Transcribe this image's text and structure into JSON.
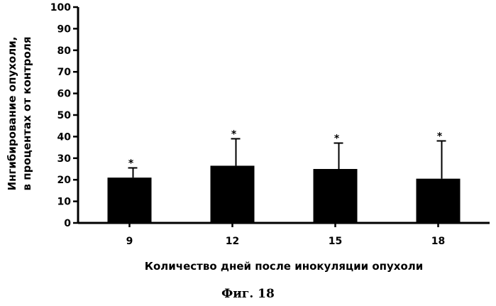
{
  "chart_data": {
    "type": "bar",
    "categories": [
      "9",
      "12",
      "15",
      "18"
    ],
    "values": [
      21,
      26.5,
      25,
      20.5
    ],
    "error_upper": [
      25.5,
      39,
      37,
      38
    ],
    "significance_markers": [
      "*",
      "*",
      "*",
      "*"
    ],
    "ylabel_line1": "Ингибирование опухоли,",
    "ylabel_line2": "в процентах от контроля",
    "xlabel": "Количество дней после инокуляции опухоли",
    "ylim": [
      0,
      100
    ],
    "yticks": [
      0,
      10,
      20,
      30,
      40,
      50,
      60,
      70,
      80,
      90,
      100
    ],
    "grid": false,
    "bar_color": "#000000"
  },
  "caption": "Фиг. 18"
}
